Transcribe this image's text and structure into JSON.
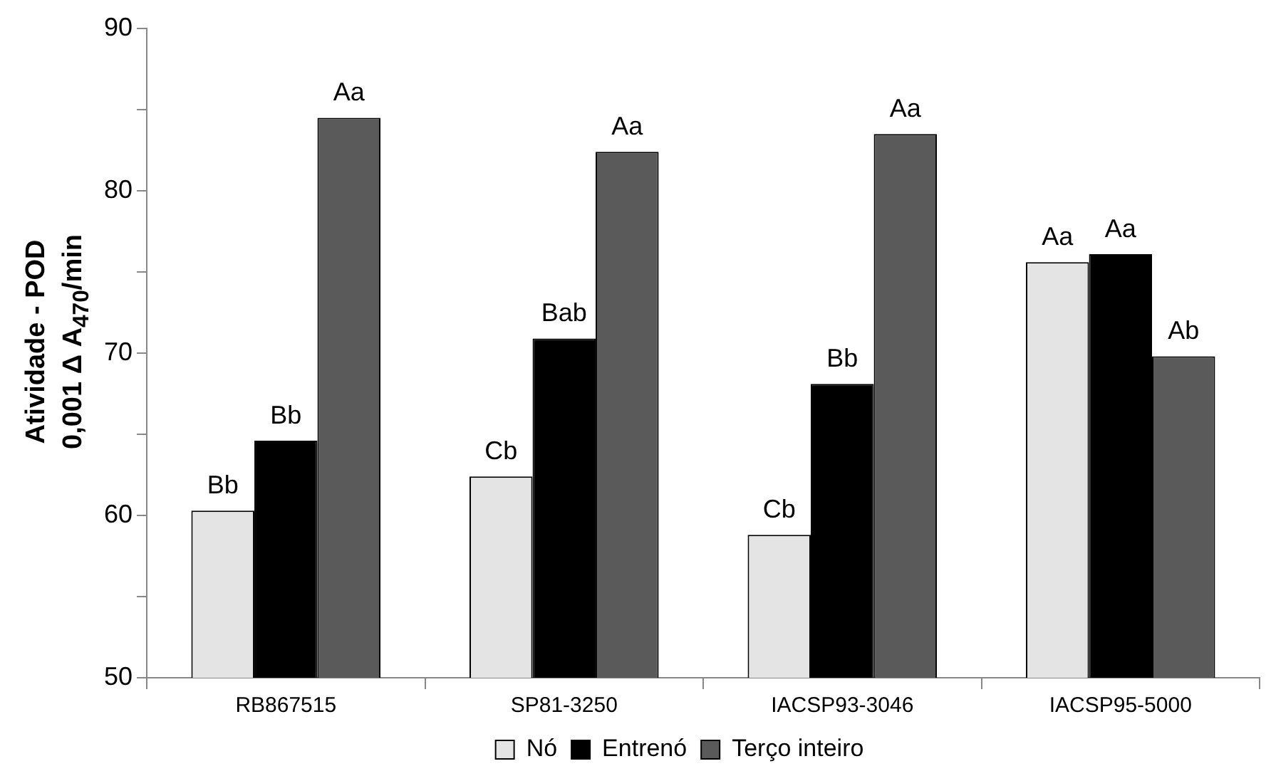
{
  "chart_data": {
    "type": "bar",
    "ylabel": "Atividade - POD\n0,001 Δ A$_{470}$/min",
    "categories": [
      "RB867515",
      "SP81-3250",
      "IACSP93-3046",
      "IACSP95-5000"
    ],
    "series": [
      {
        "name": "Nó",
        "color": "#e4e4e4",
        "values": [
          60.3,
          62.4,
          58.8,
          75.6
        ],
        "value_labels": [
          "Bb",
          "Cb",
          "Cb",
          "Aa"
        ]
      },
      {
        "name": "Entrenó",
        "color": "#000000",
        "values": [
          64.6,
          70.9,
          68.1,
          76.1
        ],
        "value_labels": [
          "Bb",
          "Bab",
          "Bb",
          "Aa"
        ]
      },
      {
        "name": "Terço inteiro",
        "color": "#5a5a5a",
        "values": [
          84.5,
          82.4,
          83.5,
          69.8
        ],
        "value_labels": [
          "Aa",
          "Aa",
          "Aa",
          "Ab"
        ]
      }
    ],
    "ylim": [
      50,
      90
    ],
    "yticks": [
      50,
      {
        "value": 55,
        "label": null
      },
      60,
      {
        "value": 65,
        "label": null
      },
      70,
      {
        "value": 75,
        "label": null
      },
      80,
      {
        "value": 85,
        "label": null
      },
      90
    ],
    "grid": false,
    "legend": "bottom"
  }
}
